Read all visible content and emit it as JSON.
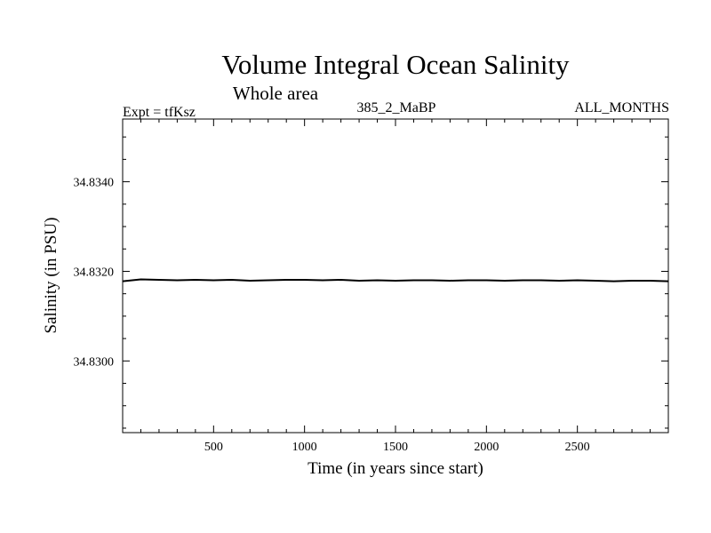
{
  "chart_data": {
    "type": "line",
    "title": "Volume Integral Ocean Salinity",
    "subtitle": "Whole area",
    "header_left": "Expt = tfKsz",
    "header_center": "385_2_MaBP",
    "header_right": "ALL_MONTHS",
    "xlabel": "Time (in years since start)",
    "ylabel": "Salinity (in PSU)",
    "xlim": [
      0,
      3000
    ],
    "ylim": [
      34.8284,
      34.8354
    ],
    "x_major_ticks": [
      500,
      1000,
      1500,
      2000,
      2500
    ],
    "x_tick_labels": [
      "500",
      "1000",
      "1500",
      "2000",
      "2500"
    ],
    "y_major_ticks": [
      34.83,
      34.832,
      34.834
    ],
    "y_tick_labels": [
      "34.8300",
      "34.8320",
      "34.8340"
    ],
    "grid": false,
    "line_color": "#000000",
    "series": [
      {
        "name": "salinity",
        "x": [
          0,
          100,
          200,
          300,
          400,
          500,
          600,
          700,
          800,
          900,
          1000,
          1100,
          1200,
          1300,
          1400,
          1500,
          1600,
          1700,
          1800,
          1900,
          2000,
          2100,
          2200,
          2300,
          2400,
          2500,
          2600,
          2700,
          2800,
          2900,
          3000
        ],
        "values": [
          34.83178,
          34.83182,
          34.83181,
          34.8318,
          34.83181,
          34.8318,
          34.83181,
          34.83179,
          34.8318,
          34.83181,
          34.83181,
          34.8318,
          34.83181,
          34.83179,
          34.8318,
          34.83179,
          34.8318,
          34.8318,
          34.83179,
          34.8318,
          34.8318,
          34.83179,
          34.8318,
          34.8318,
          34.83179,
          34.8318,
          34.83179,
          34.83178,
          34.83179,
          34.83179,
          34.83178
        ]
      }
    ]
  }
}
